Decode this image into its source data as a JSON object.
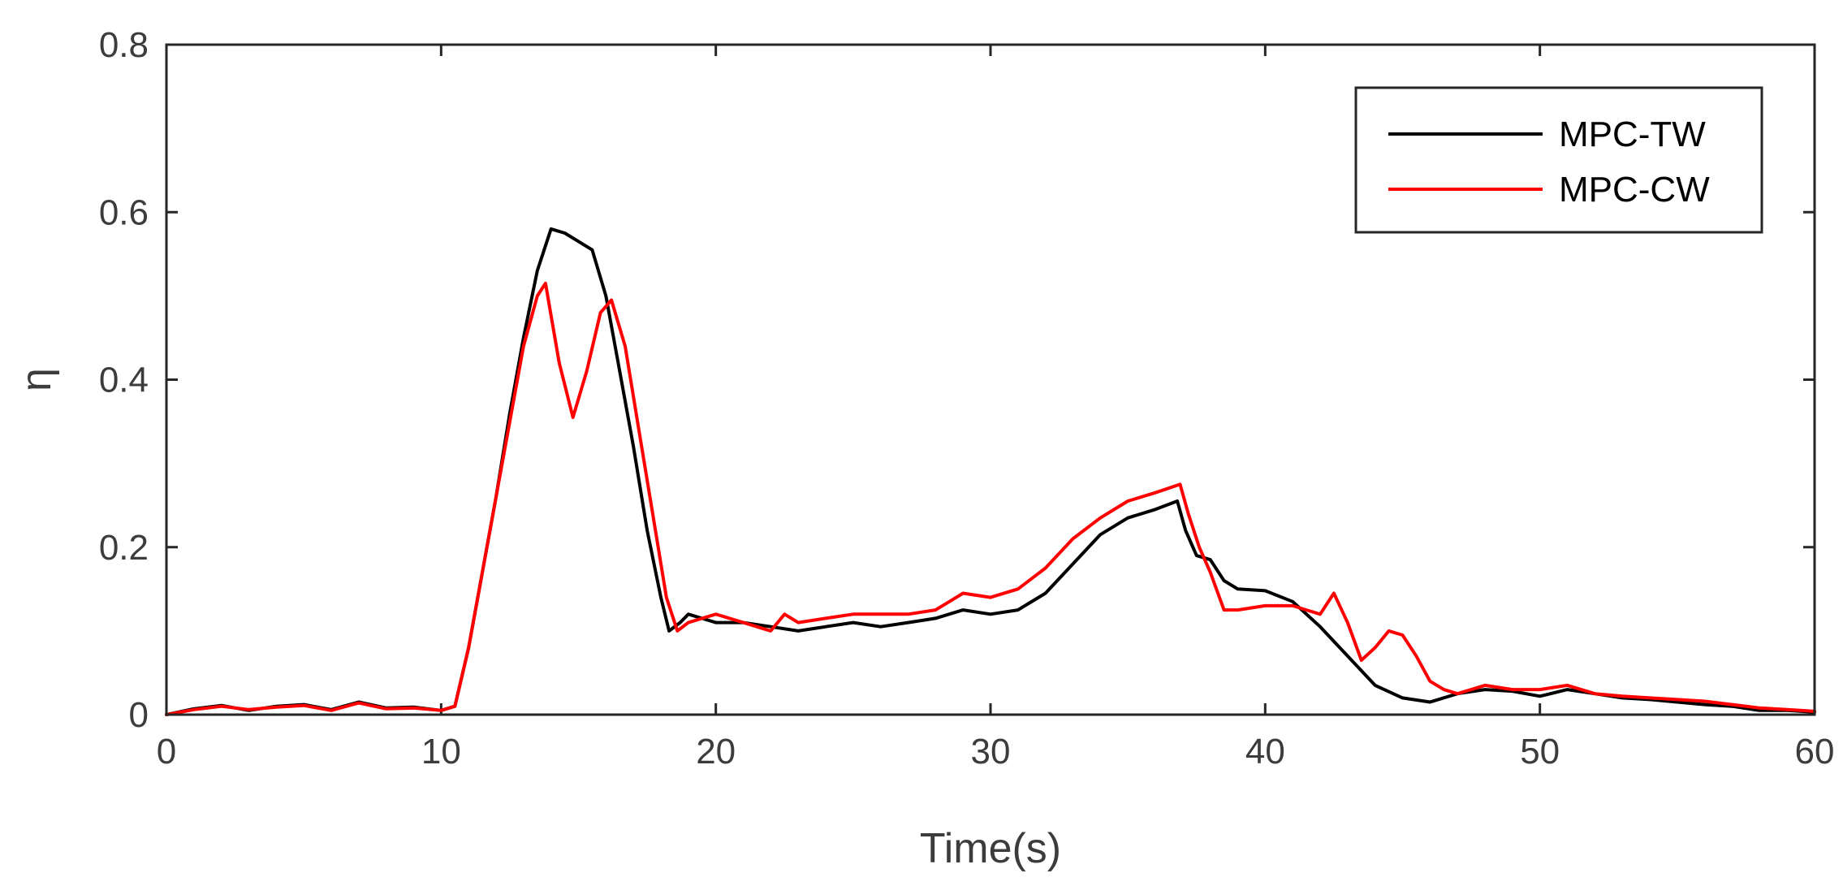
{
  "chart_data": {
    "type": "line",
    "title": "",
    "xlabel": "Time(s)",
    "ylabel": "η",
    "xlim": [
      0,
      60
    ],
    "ylim": [
      0,
      0.8
    ],
    "xticks": [
      0,
      10,
      20,
      30,
      40,
      50,
      60
    ],
    "xtick_labels": [
      "0",
      "10",
      "20",
      "30",
      "40",
      "50",
      "60"
    ],
    "yticks": [
      0,
      0.2,
      0.4,
      0.6,
      0.8
    ],
    "ytick_labels": [
      "0",
      "0.2",
      "0.4",
      "0.6",
      "0.8"
    ],
    "grid": false,
    "legend_position": "top-right",
    "series": [
      {
        "name": "MPC-TW",
        "color": "#000000",
        "x": [
          0,
          1,
          2,
          3,
          4,
          5,
          6,
          7,
          8,
          9,
          10,
          10.5,
          11,
          11.5,
          12,
          12.5,
          13,
          13.5,
          14,
          14.5,
          15,
          15.5,
          16,
          16.5,
          17,
          17.5,
          18,
          18.3,
          18.7,
          19,
          20,
          21,
          22,
          23,
          24,
          25,
          26,
          27,
          28,
          29,
          30,
          31,
          32,
          33,
          34,
          35,
          36,
          36.8,
          37.1,
          37.5,
          38,
          38.5,
          39,
          40,
          41,
          42,
          43,
          44,
          45,
          46,
          47,
          48,
          49,
          50,
          51,
          52,
          53,
          54,
          55,
          56,
          57,
          58,
          59,
          60
        ],
        "y": [
          0.0,
          0.007,
          0.011,
          0.005,
          0.01,
          0.012,
          0.006,
          0.015,
          0.008,
          0.009,
          0.005,
          0.01,
          0.08,
          0.17,
          0.26,
          0.36,
          0.45,
          0.53,
          0.58,
          0.575,
          0.565,
          0.555,
          0.5,
          0.41,
          0.32,
          0.22,
          0.14,
          0.1,
          0.11,
          0.12,
          0.11,
          0.11,
          0.105,
          0.1,
          0.105,
          0.11,
          0.105,
          0.11,
          0.115,
          0.125,
          0.12,
          0.125,
          0.145,
          0.18,
          0.215,
          0.235,
          0.245,
          0.255,
          0.22,
          0.19,
          0.185,
          0.16,
          0.15,
          0.148,
          0.135,
          0.105,
          0.07,
          0.035,
          0.02,
          0.015,
          0.025,
          0.03,
          0.028,
          0.022,
          0.03,
          0.025,
          0.02,
          0.018,
          0.015,
          0.012,
          0.01,
          0.005,
          0.005,
          0.003
        ]
      },
      {
        "name": "MPC-CW",
        "color": "#ff0000",
        "x": [
          0,
          1,
          2,
          3,
          4,
          5,
          6,
          7,
          8,
          9,
          10,
          10.5,
          11,
          11.5,
          12,
          12.5,
          13,
          13.5,
          13.8,
          14.3,
          14.8,
          15.3,
          15.8,
          16.2,
          16.7,
          17.2,
          17.7,
          18.2,
          18.6,
          19,
          20,
          21,
          22,
          22.5,
          23,
          24,
          25,
          26,
          27,
          28,
          28.5,
          29,
          30,
          31,
          32,
          33,
          34,
          35,
          36,
          36.9,
          37.2,
          37.6,
          38,
          38.5,
          39,
          40,
          41,
          41.5,
          42,
          42.5,
          43,
          43.5,
          44,
          44.5,
          45,
          45.5,
          46,
          46.5,
          47,
          48,
          49,
          50,
          51,
          52,
          53,
          54,
          55,
          56,
          57,
          58,
          59,
          60
        ],
        "y": [
          0.0,
          0.006,
          0.01,
          0.006,
          0.009,
          0.011,
          0.005,
          0.014,
          0.007,
          0.008,
          0.005,
          0.01,
          0.08,
          0.17,
          0.26,
          0.35,
          0.44,
          0.5,
          0.515,
          0.42,
          0.355,
          0.41,
          0.48,
          0.495,
          0.44,
          0.34,
          0.24,
          0.14,
          0.1,
          0.11,
          0.12,
          0.11,
          0.1,
          0.12,
          0.11,
          0.115,
          0.12,
          0.12,
          0.12,
          0.125,
          0.135,
          0.145,
          0.14,
          0.15,
          0.175,
          0.21,
          0.235,
          0.255,
          0.265,
          0.275,
          0.24,
          0.2,
          0.17,
          0.125,
          0.125,
          0.13,
          0.13,
          0.125,
          0.12,
          0.145,
          0.11,
          0.065,
          0.08,
          0.1,
          0.095,
          0.07,
          0.04,
          0.03,
          0.025,
          0.035,
          0.03,
          0.03,
          0.035,
          0.025,
          0.022,
          0.02,
          0.018,
          0.016,
          0.012,
          0.008,
          0.006,
          0.004
        ]
      }
    ]
  }
}
